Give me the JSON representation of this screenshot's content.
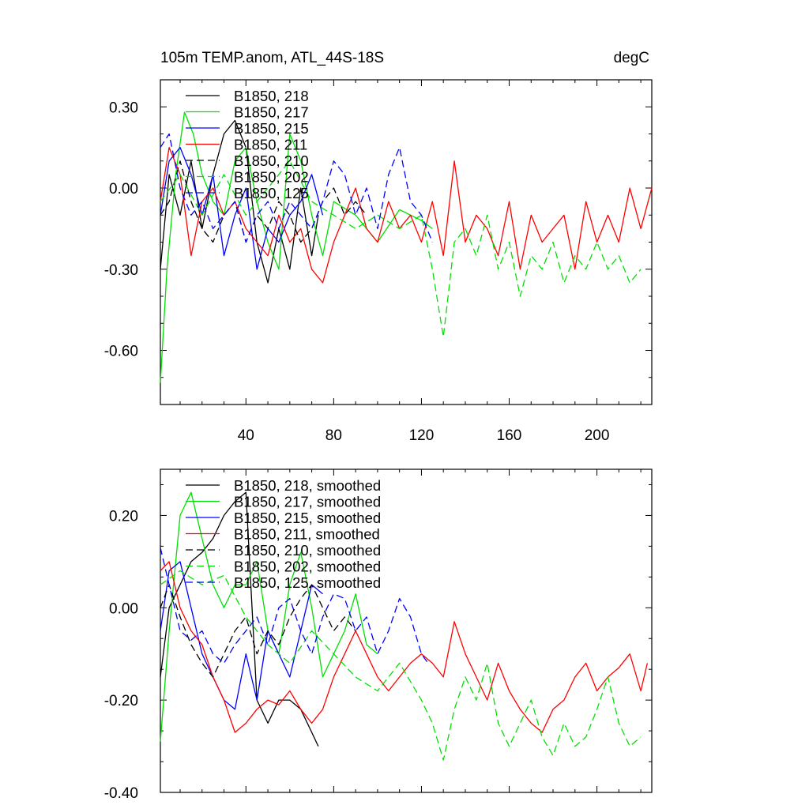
{
  "header": {
    "title": "105m TEMP.anom, ATL_44S-18S",
    "units": "degC"
  },
  "chart_data": [
    {
      "type": "line",
      "title": "105m TEMP.anom, ATL_44S-18S",
      "units_label": "degC",
      "xlim": [
        1,
        225
      ],
      "ylim": [
        -0.8,
        0.4
      ],
      "x_ticks": [
        40,
        80,
        120,
        160,
        200
      ],
      "x_tick_labels": [
        "40",
        "80",
        "120",
        "160",
        "200"
      ],
      "y_ticks": [
        0.3,
        0.0,
        -0.3,
        -0.6
      ],
      "y_tick_labels": [
        "0.30",
        "0.00",
        "-0.30",
        "-0.60"
      ],
      "grid": false,
      "legend": "top-left",
      "series": [
        {
          "name": "B1850, 218",
          "color": "#000000",
          "dash": "solid",
          "x": [
            1,
            5,
            10,
            15,
            20,
            25,
            30,
            35,
            40,
            45,
            50,
            55,
            60,
            65,
            70,
            73
          ],
          "y": [
            -0.3,
            0.05,
            -0.1,
            0.1,
            -0.15,
            0.05,
            0.2,
            0.25,
            0.15,
            -0.2,
            -0.35,
            -0.15,
            -0.3,
            0.0,
            -0.25,
            -0.1
          ]
        },
        {
          "name": "B1850, 217",
          "color": "#00e000",
          "dash": "solid",
          "x": [
            1,
            4,
            8,
            12,
            16,
            20,
            25,
            30,
            35,
            40,
            45,
            50,
            55,
            60,
            65,
            70,
            75,
            80,
            90,
            100,
            110,
            120,
            125
          ],
          "y": [
            -0.72,
            -0.3,
            0.05,
            0.28,
            0.2,
            0.05,
            -0.05,
            -0.1,
            0.1,
            0.15,
            -0.05,
            -0.2,
            -0.3,
            0.2,
            0.1,
            -0.1,
            -0.25,
            -0.05,
            -0.1,
            -0.2,
            -0.08,
            -0.12,
            -0.15
          ]
        },
        {
          "name": "B1850, 215",
          "color": "#0000ff",
          "dash": "solid",
          "x": [
            1,
            5,
            10,
            15,
            20,
            25,
            30,
            35,
            40,
            45,
            50,
            55,
            60,
            65,
            70,
            75
          ],
          "y": [
            -0.1,
            0.1,
            0.15,
            0.05,
            -0.1,
            0.05,
            -0.25,
            -0.1,
            0.0,
            -0.3,
            -0.15,
            -0.2,
            -0.1,
            -0.05,
            0.05,
            -0.1
          ]
        },
        {
          "name": "B1850, 211",
          "color": "#ff0000",
          "dash": "solid",
          "x": [
            1,
            5,
            10,
            15,
            20,
            25,
            30,
            35,
            40,
            45,
            50,
            55,
            60,
            65,
            70,
            75,
            80,
            85,
            90,
            95,
            100,
            105,
            110,
            115,
            120,
            125,
            130,
            135,
            140,
            145,
            150,
            155,
            160,
            165,
            170,
            175,
            180,
            185,
            190,
            195,
            200,
            205,
            210,
            215,
            220,
            225
          ],
          "y": [
            -0.05,
            0.15,
            0.05,
            -0.25,
            -0.05,
            0.0,
            -0.1,
            -0.05,
            -0.15,
            -0.2,
            -0.25,
            -0.1,
            -0.2,
            -0.15,
            -0.3,
            -0.35,
            -0.2,
            -0.1,
            0.0,
            -0.15,
            -0.2,
            -0.05,
            -0.15,
            -0.1,
            -0.2,
            -0.05,
            -0.25,
            0.1,
            -0.2,
            -0.1,
            -0.15,
            -0.25,
            -0.05,
            -0.3,
            -0.1,
            -0.2,
            -0.15,
            -0.1,
            -0.3,
            -0.05,
            -0.2,
            -0.1,
            -0.2,
            0.0,
            -0.15,
            0.0
          ]
        },
        {
          "name": "B1850, 210",
          "color": "#000000",
          "dash": "dash",
          "x": [
            1,
            5,
            10,
            15,
            20,
            25,
            30,
            35,
            40,
            45,
            50,
            55,
            60,
            65,
            70,
            75,
            80,
            85,
            90,
            95
          ],
          "y": [
            -0.1,
            -0.05,
            0.1,
            -0.05,
            -0.15,
            -0.2,
            -0.1,
            -0.05,
            -0.2,
            -0.1,
            -0.15,
            -0.05,
            -0.1,
            -0.2,
            -0.15,
            -0.05,
            0.0,
            -0.1,
            -0.05,
            -0.1
          ]
        },
        {
          "name": "B1850, 202",
          "color": "#00e000",
          "dash": "dash",
          "x": [
            1,
            10,
            20,
            30,
            40,
            50,
            60,
            70,
            80,
            90,
            100,
            110,
            120,
            125,
            130,
            135,
            140,
            145,
            150,
            155,
            160,
            165,
            170,
            175,
            180,
            185,
            190,
            195,
            200,
            205,
            210,
            215,
            220
          ],
          "y": [
            -0.05,
            0.05,
            -0.1,
            0.05,
            -0.1,
            0.0,
            0.1,
            -0.05,
            -0.1,
            -0.15,
            -0.1,
            -0.15,
            -0.1,
            -0.3,
            -0.55,
            -0.2,
            -0.15,
            -0.25,
            -0.1,
            -0.3,
            -0.2,
            -0.4,
            -0.25,
            -0.3,
            -0.2,
            -0.35,
            -0.25,
            -0.3,
            -0.2,
            -0.3,
            -0.25,
            -0.35,
            -0.3
          ]
        },
        {
          "name": "B1850, 125",
          "color": "#0000ff",
          "dash": "dash",
          "x": [
            1,
            5,
            10,
            15,
            20,
            25,
            30,
            35,
            40,
            45,
            50,
            55,
            60,
            65,
            70,
            75,
            80,
            85,
            90,
            95,
            100,
            105,
            110,
            115,
            120,
            125
          ],
          "y": [
            0.15,
            0.2,
            0.0,
            -0.1,
            -0.05,
            -0.15,
            -0.1,
            -0.05,
            -0.2,
            -0.1,
            -0.05,
            -0.15,
            -0.05,
            -0.1,
            -0.15,
            -0.05,
            0.1,
            0.05,
            -0.1,
            0.0,
            -0.15,
            0.05,
            0.15,
            -0.05,
            -0.1,
            -0.2
          ]
        }
      ]
    },
    {
      "type": "line",
      "xlim": [
        1,
        225
      ],
      "ylim": [
        -0.4,
        0.3
      ],
      "x_ticks": [
        40,
        80,
        120,
        160,
        200
      ],
      "y_ticks": [
        0.2,
        0.0,
        -0.2,
        -0.4
      ],
      "y_tick_labels": [
        "0.20",
        "0.00",
        "-0.20",
        "-0.40"
      ],
      "grid": false,
      "legend": "top-left",
      "series": [
        {
          "name": "B1850, 218, smoothed",
          "color": "#000000",
          "dash": "solid",
          "x": [
            1,
            5,
            10,
            15,
            20,
            25,
            30,
            35,
            40,
            45,
            50,
            55,
            60,
            65,
            70,
            73
          ],
          "y": [
            -0.15,
            0.0,
            0.05,
            0.1,
            0.12,
            0.15,
            0.2,
            0.23,
            0.25,
            -0.2,
            -0.25,
            -0.2,
            -0.2,
            -0.22,
            -0.27,
            -0.3
          ]
        },
        {
          "name": "B1850, 217, smoothed",
          "color": "#00e000",
          "dash": "solid",
          "x": [
            1,
            5,
            10,
            15,
            20,
            25,
            30,
            35,
            40,
            45,
            50,
            55,
            60,
            65,
            70,
            75,
            80,
            85,
            90,
            95,
            100
          ],
          "y": [
            -0.29,
            -0.05,
            0.2,
            0.25,
            0.15,
            0.05,
            0.0,
            0.05,
            0.05,
            0.1,
            -0.05,
            -0.1,
            0.05,
            0.12,
            0.0,
            -0.15,
            -0.1,
            -0.05,
            0.03,
            -0.08,
            -0.1
          ]
        },
        {
          "name": "B1850, 215, smoothed",
          "color": "#0000ff",
          "dash": "solid",
          "x": [
            1,
            5,
            10,
            15,
            20,
            25,
            30,
            35,
            40,
            45,
            50,
            55,
            60,
            65,
            70,
            75
          ],
          "y": [
            -0.05,
            0.08,
            0.1,
            0.0,
            -0.1,
            -0.15,
            -0.2,
            -0.22,
            -0.1,
            -0.2,
            -0.05,
            -0.1,
            -0.15,
            -0.05,
            0.05,
            0.03
          ]
        },
        {
          "name": "B1850, 211, smoothed",
          "color": "#ff0000",
          "dash": "solid",
          "x": [
            1,
            5,
            10,
            15,
            20,
            25,
            30,
            35,
            40,
            45,
            50,
            55,
            60,
            65,
            70,
            75,
            80,
            85,
            90,
            95,
            100,
            105,
            110,
            115,
            120,
            125,
            130,
            135,
            140,
            145,
            150,
            155,
            160,
            165,
            170,
            175,
            180,
            185,
            190,
            195,
            200,
            205,
            210,
            215,
            220,
            223
          ],
          "y": [
            0.08,
            0.1,
            0.0,
            -0.05,
            -0.08,
            -0.15,
            -0.2,
            -0.27,
            -0.25,
            -0.22,
            -0.2,
            -0.21,
            -0.18,
            -0.22,
            -0.25,
            -0.22,
            -0.15,
            -0.1,
            -0.05,
            -0.1,
            -0.15,
            -0.18,
            -0.15,
            -0.12,
            -0.1,
            -0.12,
            -0.15,
            -0.03,
            -0.1,
            -0.15,
            -0.2,
            -0.12,
            -0.18,
            -0.22,
            -0.25,
            -0.27,
            -0.22,
            -0.2,
            -0.15,
            -0.12,
            -0.18,
            -0.15,
            -0.13,
            -0.1,
            -0.18,
            -0.12
          ]
        },
        {
          "name": "B1850, 210, smoothed",
          "color": "#000000",
          "dash": "dash",
          "x": [
            1,
            5,
            10,
            15,
            20,
            25,
            30,
            35,
            40,
            45,
            50,
            55,
            60,
            65,
            70,
            75,
            80,
            85,
            90
          ],
          "y": [
            0.0,
            0.05,
            -0.02,
            -0.08,
            -0.12,
            -0.15,
            -0.1,
            -0.05,
            -0.02,
            -0.1,
            -0.05,
            -0.08,
            -0.02,
            0.02,
            0.05,
            0.0,
            -0.05,
            -0.02,
            -0.05
          ]
        },
        {
          "name": "B1850, 202, smoothed",
          "color": "#00e000",
          "dash": "dash",
          "x": [
            1,
            10,
            20,
            30,
            40,
            50,
            60,
            70,
            80,
            90,
            100,
            110,
            120,
            125,
            130,
            135,
            140,
            145,
            150,
            155,
            160,
            165,
            170,
            175,
            180,
            185,
            190,
            195,
            200,
            205,
            210,
            215,
            220
          ],
          "y": [
            0.05,
            0.08,
            0.05,
            0.07,
            -0.02,
            -0.08,
            -0.12,
            -0.05,
            -0.1,
            -0.15,
            -0.18,
            -0.12,
            -0.2,
            -0.25,
            -0.33,
            -0.22,
            -0.15,
            -0.2,
            -0.12,
            -0.25,
            -0.3,
            -0.25,
            -0.2,
            -0.28,
            -0.32,
            -0.25,
            -0.3,
            -0.28,
            -0.22,
            -0.15,
            -0.25,
            -0.3,
            -0.28
          ]
        },
        {
          "name": "B1850, 125, smoothed",
          "color": "#0000ff",
          "dash": "dash",
          "x": [
            1,
            5,
            10,
            15,
            20,
            25,
            30,
            35,
            40,
            45,
            50,
            55,
            60,
            65,
            70,
            75,
            80,
            85,
            90,
            95,
            100,
            105,
            110,
            115,
            120,
            123
          ],
          "y": [
            0.13,
            0.05,
            -0.05,
            -0.07,
            -0.05,
            -0.1,
            -0.12,
            -0.08,
            -0.05,
            -0.02,
            -0.08,
            0.0,
            0.02,
            -0.05,
            -0.1,
            -0.02,
            0.03,
            0.02,
            -0.05,
            -0.02,
            -0.1,
            -0.05,
            0.02,
            -0.02,
            -0.1,
            -0.12
          ]
        }
      ]
    }
  ]
}
